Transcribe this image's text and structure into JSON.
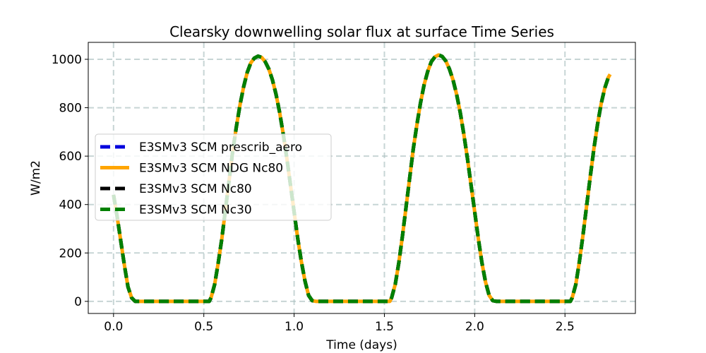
{
  "chart_data": {
    "type": "line",
    "title": "Clearsky downwelling solar flux at surface Time Series",
    "xlabel": "Time (days)",
    "ylabel": "W/m2",
    "xlim": [
      -0.14,
      2.89
    ],
    "ylim": [
      -50,
      1070
    ],
    "xticks": [
      0.0,
      0.5,
      1.0,
      1.5,
      2.0,
      2.5
    ],
    "xtick_labels": [
      "0.0",
      "0.5",
      "1.0",
      "1.5",
      "2.0",
      "2.5"
    ],
    "yticks": [
      0,
      200,
      400,
      600,
      800,
      1000
    ],
    "ytick_labels": [
      "0",
      "200",
      "400",
      "600",
      "800",
      "1000"
    ],
    "grid": true,
    "legend_position": "center-left",
    "x": [
      0.0,
      0.02,
      0.04,
      0.06,
      0.08,
      0.1,
      0.12,
      0.2,
      0.3,
      0.4,
      0.5,
      0.53,
      0.54,
      0.56,
      0.58,
      0.6,
      0.62,
      0.64,
      0.66,
      0.68,
      0.7,
      0.72,
      0.74,
      0.76,
      0.78,
      0.8,
      0.82,
      0.84,
      0.86,
      0.88,
      0.9,
      0.92,
      0.94,
      0.96,
      0.98,
      1.0,
      1.02,
      1.04,
      1.06,
      1.08,
      1.1,
      1.12,
      1.2,
      1.3,
      1.4,
      1.5,
      1.53,
      1.54,
      1.56,
      1.58,
      1.6,
      1.62,
      1.64,
      1.66,
      1.68,
      1.7,
      1.72,
      1.74,
      1.76,
      1.78,
      1.8,
      1.82,
      1.84,
      1.86,
      1.88,
      1.9,
      1.92,
      1.94,
      1.96,
      1.98,
      2.0,
      2.02,
      2.04,
      2.06,
      2.08,
      2.1,
      2.12,
      2.2,
      2.3,
      2.4,
      2.5,
      2.53,
      2.54,
      2.56,
      2.58,
      2.6,
      2.62,
      2.64,
      2.66,
      2.68,
      2.7,
      2.72,
      2.74,
      2.75
    ],
    "series": [
      {
        "name": "E3SMv3 SCM prescrib_aero",
        "color": "#0000dd",
        "dash": "dashed",
        "values": [
          440,
          350,
          250,
          150,
          60,
          15,
          0,
          0,
          0,
          0,
          0,
          0,
          15,
          70,
          160,
          260,
          380,
          500,
          620,
          720,
          810,
          885,
          945,
          985,
          1005,
          1013,
          1008,
          990,
          960,
          915,
          855,
          780,
          690,
          590,
          480,
          370,
          260,
          165,
          85,
          25,
          3,
          0,
          0,
          0,
          0,
          0,
          0,
          15,
          70,
          160,
          270,
          390,
          510,
          630,
          730,
          820,
          895,
          950,
          990,
          1010,
          1018,
          1012,
          993,
          960,
          915,
          855,
          780,
          690,
          590,
          480,
          370,
          260,
          160,
          80,
          25,
          3,
          0,
          0,
          0,
          0,
          0,
          0,
          15,
          70,
          165,
          275,
          395,
          515,
          630,
          730,
          815,
          880,
          925,
          938
        ]
      },
      {
        "name": "E3SMv3 SCM NDG Nc80",
        "color": "#ffa500",
        "dash": "solid",
        "values": [
          440,
          350,
          250,
          150,
          60,
          15,
          0,
          0,
          0,
          0,
          0,
          0,
          15,
          70,
          160,
          260,
          380,
          500,
          620,
          720,
          810,
          885,
          945,
          985,
          1005,
          1013,
          1008,
          990,
          960,
          915,
          855,
          780,
          690,
          590,
          480,
          370,
          260,
          165,
          85,
          25,
          3,
          0,
          0,
          0,
          0,
          0,
          0,
          15,
          70,
          160,
          270,
          390,
          510,
          630,
          730,
          820,
          895,
          950,
          990,
          1010,
          1018,
          1012,
          993,
          960,
          915,
          855,
          780,
          690,
          590,
          480,
          370,
          260,
          160,
          80,
          25,
          3,
          0,
          0,
          0,
          0,
          0,
          0,
          15,
          70,
          165,
          275,
          395,
          515,
          630,
          730,
          815,
          880,
          925,
          938
        ]
      },
      {
        "name": "E3SMv3 SCM Nc80",
        "color": "#000000",
        "dash": "dashed",
        "values": [
          440,
          350,
          250,
          150,
          60,
          15,
          0,
          0,
          0,
          0,
          0,
          0,
          15,
          70,
          160,
          260,
          380,
          500,
          620,
          720,
          810,
          885,
          945,
          985,
          1005,
          1013,
          1008,
          990,
          960,
          915,
          855,
          780,
          690,
          590,
          480,
          370,
          260,
          165,
          85,
          25,
          3,
          0,
          0,
          0,
          0,
          0,
          0,
          15,
          70,
          160,
          270,
          390,
          510,
          630,
          730,
          820,
          895,
          950,
          990,
          1010,
          1018,
          1012,
          993,
          960,
          915,
          855,
          780,
          690,
          590,
          480,
          370,
          260,
          160,
          80,
          25,
          3,
          0,
          0,
          0,
          0,
          0,
          0,
          15,
          70,
          165,
          275,
          395,
          515,
          630,
          730,
          815,
          880,
          925,
          938
        ]
      },
      {
        "name": "E3SMv3 SCM Nc30",
        "color": "#008000",
        "dash": "dashed",
        "values": [
          440,
          350,
          250,
          150,
          60,
          15,
          0,
          0,
          0,
          0,
          0,
          0,
          15,
          70,
          160,
          260,
          380,
          500,
          620,
          720,
          810,
          885,
          945,
          985,
          1005,
          1013,
          1008,
          990,
          960,
          915,
          855,
          780,
          690,
          590,
          480,
          370,
          260,
          165,
          85,
          25,
          3,
          0,
          0,
          0,
          0,
          0,
          0,
          15,
          70,
          160,
          270,
          390,
          510,
          630,
          730,
          820,
          895,
          950,
          990,
          1010,
          1018,
          1012,
          993,
          960,
          915,
          855,
          780,
          690,
          590,
          480,
          370,
          260,
          160,
          80,
          25,
          3,
          0,
          0,
          0,
          0,
          0,
          0,
          15,
          70,
          165,
          275,
          395,
          515,
          630,
          730,
          815,
          880,
          925,
          938
        ]
      }
    ]
  }
}
